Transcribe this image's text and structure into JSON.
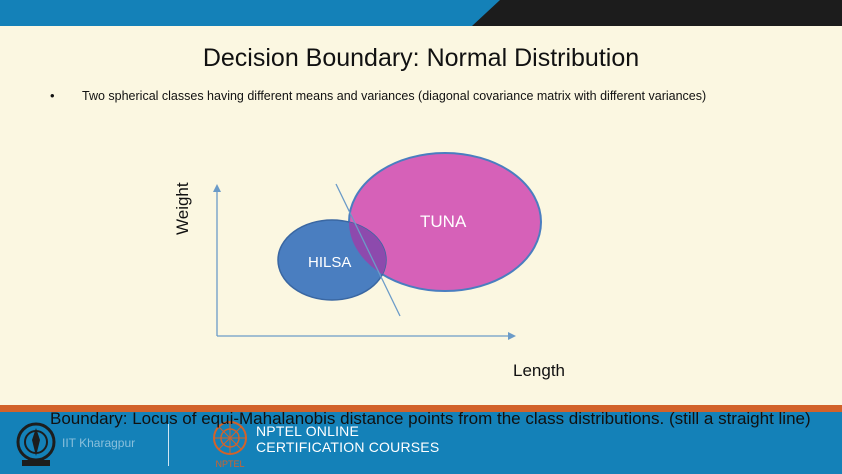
{
  "slide": {
    "title": "Decision Boundary: Normal Distribution",
    "bullet": "Two spherical classes having different means and variances (diagonal covariance matrix with different variances)"
  },
  "diagram": {
    "y_axis_label": "Weight",
    "x_axis_label": "Length",
    "classes": [
      {
        "name": "TUNA",
        "color": "#d661b8"
      },
      {
        "name": "HILSA",
        "color": "#4a7ec0"
      }
    ],
    "overlap_color": "#8d4aad",
    "axis_color": "#6b9bc8",
    "boundary_color": "#6b9bc8"
  },
  "footer": {
    "faint_text": "IIT Kharagpur",
    "line1": "NPTEL ONLINE",
    "line2": "CERTIFICATION COURSES",
    "logo_caption": "NPTEL",
    "bar_color": "#1481b8",
    "stripe_color": "#d2622a"
  },
  "overlay_caption": "Boundary: Locus of equi-Mahalanobis distance points from the class distributions. (still a straight line)"
}
